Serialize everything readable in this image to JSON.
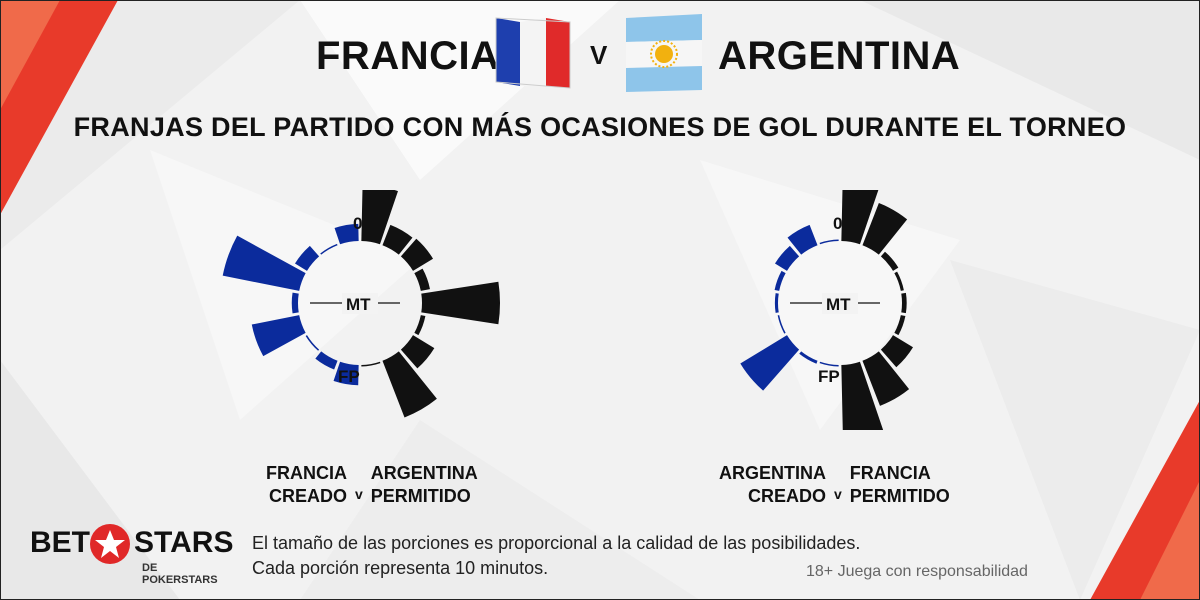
{
  "header": {
    "team_left": "FRANCIA",
    "vs": "V",
    "team_right": "ARGENTINA",
    "subtitle": "FRANJAS DEL PARTIDO CON MÁS OCASIONES DE GOL DURANTE EL TORNEO"
  },
  "colors": {
    "black": "#111111",
    "blue": "#0b2b9c",
    "red": "#e02828"
  },
  "chart_data": [
    {
      "type": "radial-bar",
      "labels": {
        "start": "0",
        "half": "MT",
        "end": "FP"
      },
      "segments_minutes": 10,
      "series": [
        {
          "side": "created",
          "color": "#111111",
          "values": [
            0.72,
            0.28,
            0.3,
            0.12,
            1.0,
            0.06,
            0.32,
            0.78,
            0.0
          ]
        },
        {
          "side": "allowed",
          "color": "#0b2b9c",
          "values": [
            0.22,
            0.0,
            0.18,
            1.0,
            0.08,
            0.62,
            0.02,
            0.12,
            0.26
          ]
        }
      ],
      "caption": {
        "left_team": "FRANCIA",
        "left_role": "CREADO",
        "vs": "v",
        "right_team": "ARGENTINA",
        "right_role": "PERMITIDO"
      }
    },
    {
      "type": "radial-bar",
      "labels": {
        "start": "0",
        "half": "MT",
        "end": "FP"
      },
      "segments_minutes": 10,
      "series": [
        {
          "side": "created",
          "color": "#111111",
          "values": [
            0.9,
            0.58,
            0.08,
            0.04,
            0.06,
            0.06,
            0.3,
            0.62,
            1.0
          ]
        },
        {
          "side": "allowed",
          "color": "#0b2b9c",
          "values": [
            0.02,
            0.28,
            0.18,
            0.06,
            0.04,
            0.02,
            0.7,
            0.04,
            0.0
          ]
        }
      ],
      "caption": {
        "left_team": "ARGENTINA",
        "left_role": "CREADO",
        "vs": "v",
        "right_team": "FRANCIA",
        "right_role": "PERMITIDO"
      }
    }
  ],
  "footer": {
    "note_line1": "El tamaño de las porciones es proporcional a la calidad de las posibilidades.",
    "note_line2": "Cada porción representa 10 minutos.",
    "responsible": "18+ Juega con responsabilidad",
    "logo_left": "BET",
    "logo_right": "STARS",
    "logo_sub": "DE POKERSTARS"
  }
}
